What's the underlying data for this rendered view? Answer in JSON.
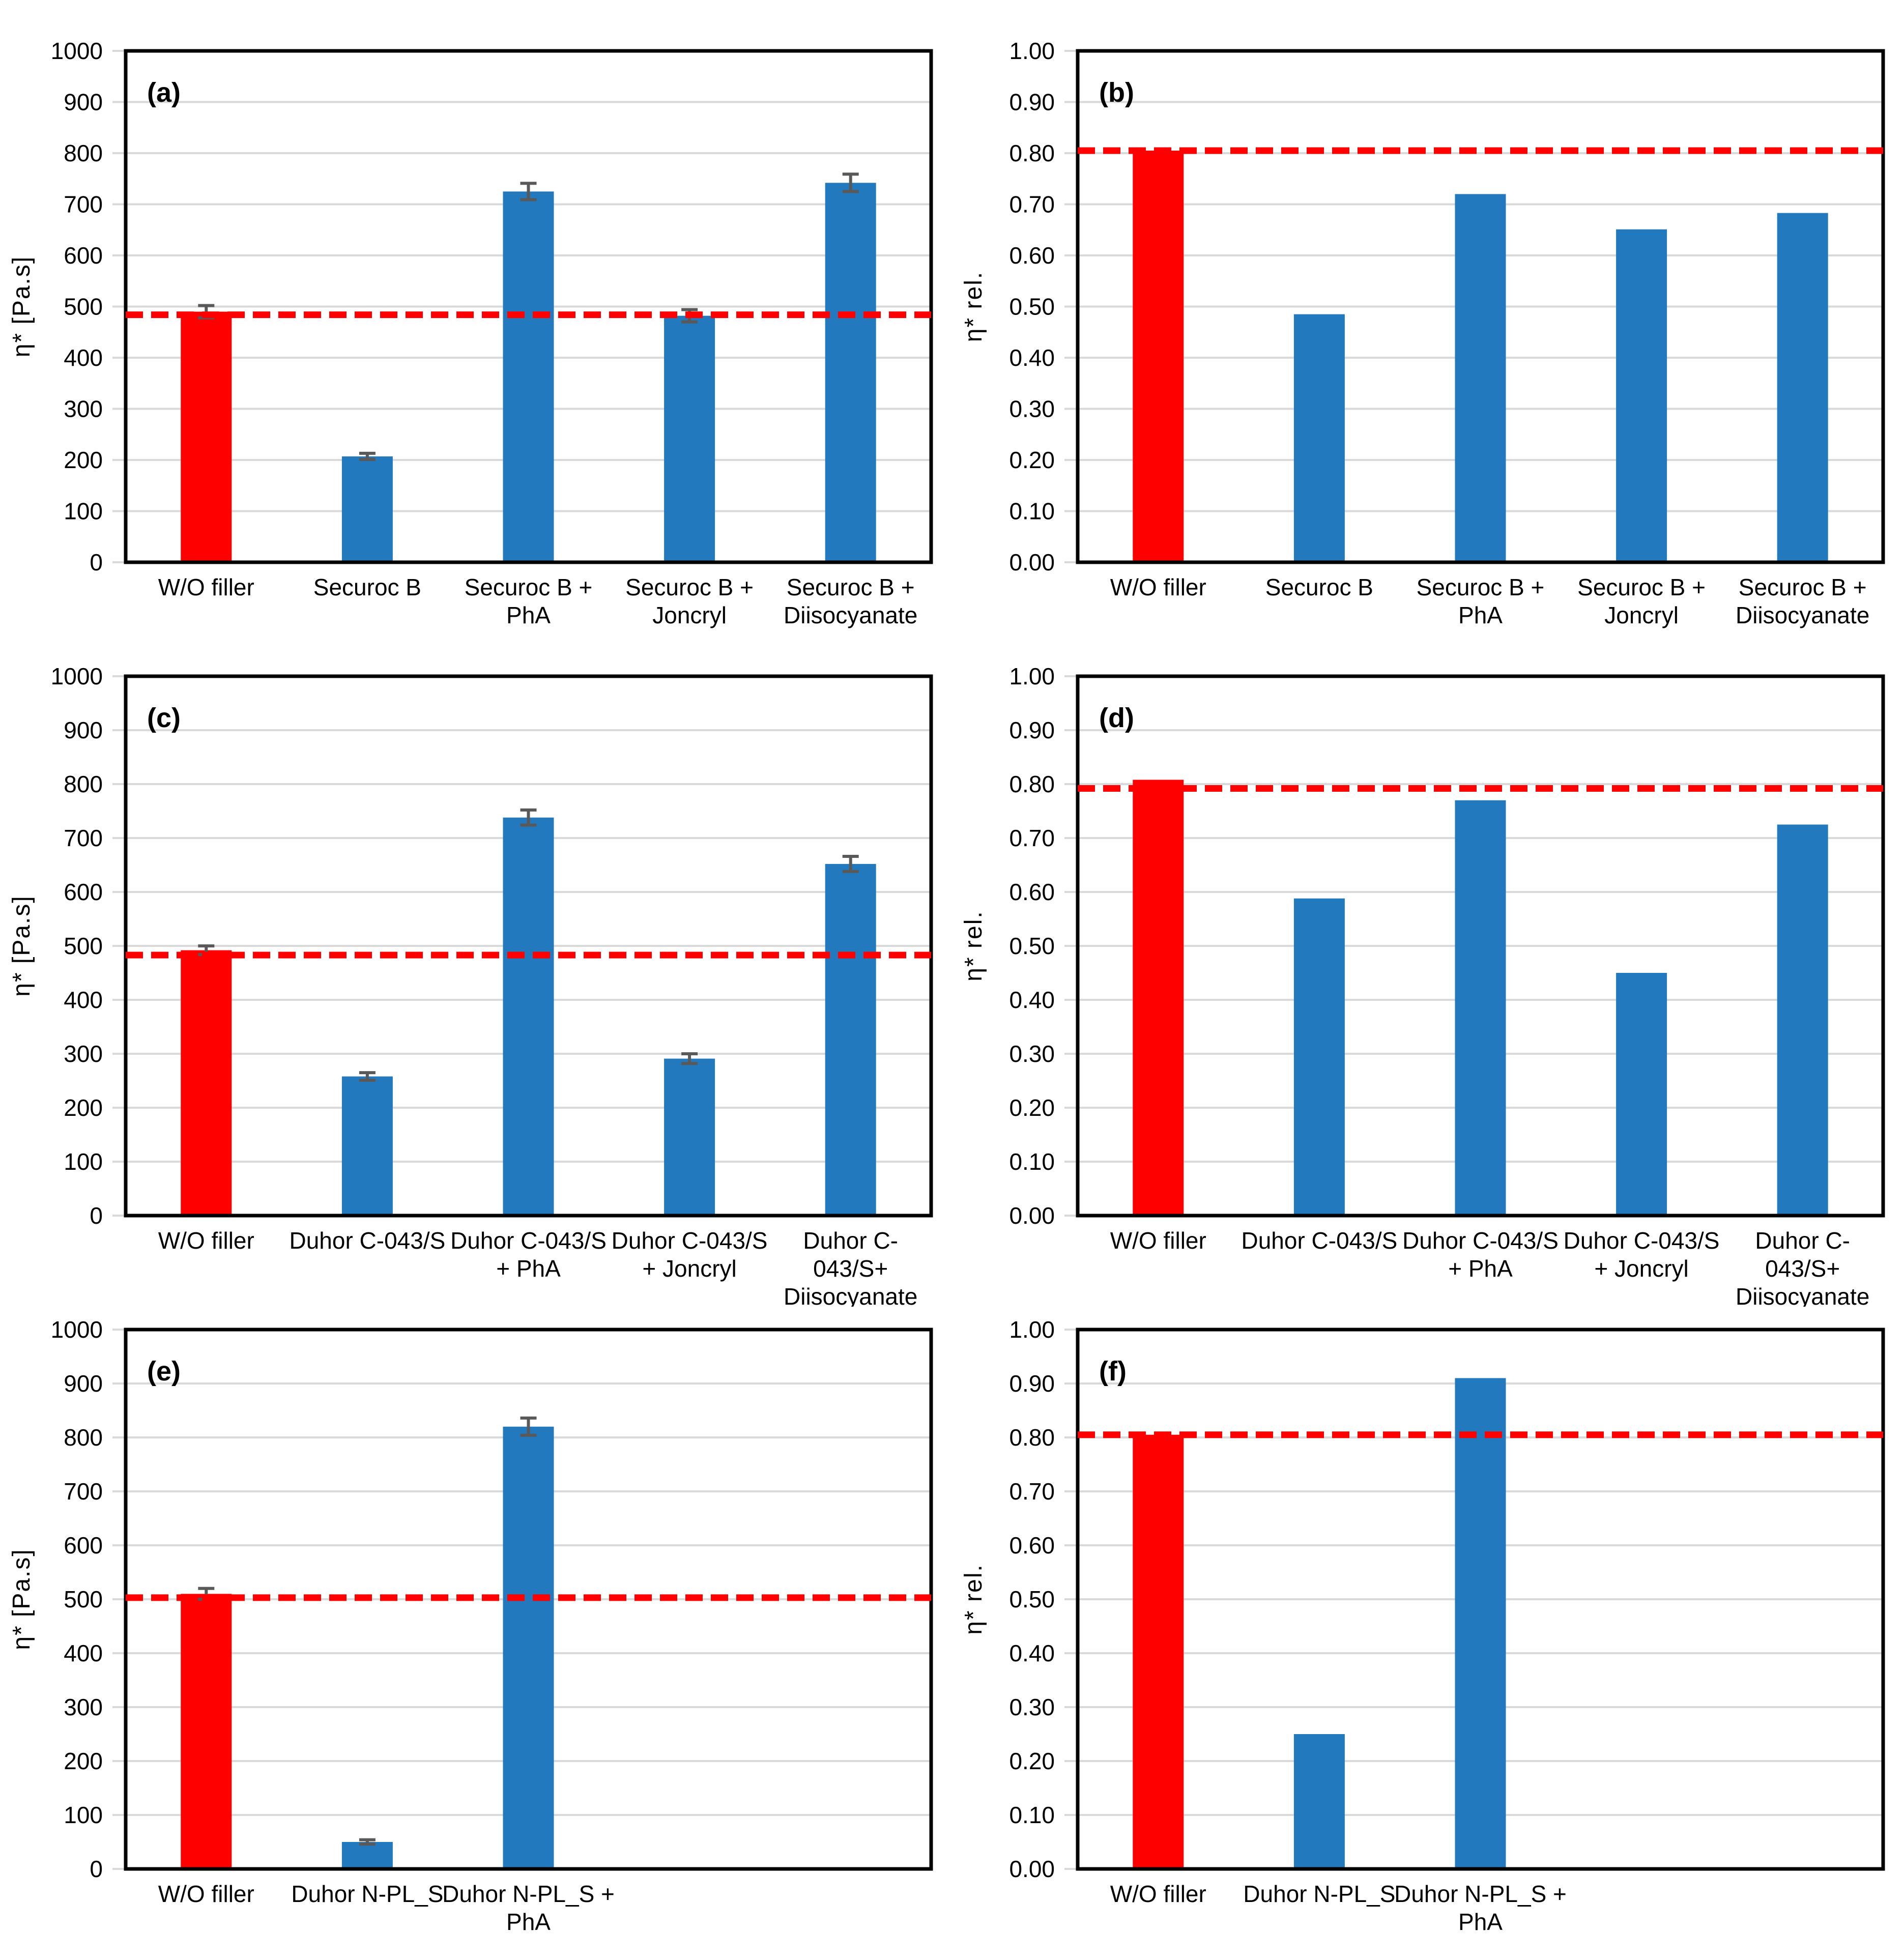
{
  "figure": {
    "background": "#ffffff",
    "panels_per_row": 2,
    "rows": 3
  },
  "colors": {
    "red": "#FF0000",
    "blue": "#2379BD",
    "grid": "#D9D9D9",
    "border": "#000000",
    "error": "#595959",
    "dash": "#FF0000"
  },
  "chart_data": [
    {
      "type": "bar",
      "panel_label": "(a)",
      "ylabel": "η* [Pa.s]",
      "ylim": [
        0,
        1000
      ],
      "ytick_step": 100,
      "ytick_format": "int",
      "grid": true,
      "slots": 5,
      "categories": [
        "W/O filler",
        "Securoc B",
        "Securoc B +\nPhA",
        "Securoc B +\nJoncryl",
        "Securoc B +\nDiisocyanate"
      ],
      "values": [
        490,
        207,
        725,
        482,
        742
      ],
      "errors": [
        12,
        6,
        16,
        12,
        17
      ],
      "bar_colors": [
        "red",
        "blue",
        "blue",
        "blue",
        "blue"
      ],
      "dashed_line": 484
    },
    {
      "type": "bar",
      "panel_label": "(b)",
      "ylabel": "η* rel.",
      "ylim": [
        0,
        1.0
      ],
      "ytick_step": 0.1,
      "ytick_format": "dec2",
      "grid": true,
      "slots": 5,
      "categories": [
        "W/O filler",
        "Securoc B",
        "Securoc B +\nPhA",
        "Securoc B +\nJoncryl",
        "Securoc B +\nDiisocyanate"
      ],
      "values": [
        0.805,
        0.485,
        0.72,
        0.651,
        0.683
      ],
      "errors": null,
      "bar_colors": [
        "red",
        "blue",
        "blue",
        "blue",
        "blue"
      ],
      "dashed_line": 0.805
    },
    {
      "type": "bar",
      "panel_label": "(c)",
      "ylabel": "η* [Pa.s]",
      "ylim": [
        0,
        1000
      ],
      "ytick_step": 100,
      "ytick_format": "int",
      "grid": true,
      "slots": 5,
      "categories": [
        "W/O filler",
        "Duhor C-043/S",
        "Duhor C-043/S\n+ PhA",
        "Duhor C-043/S\n+ Joncryl",
        "Duhor C-\n043/S+\nDiisocyanate"
      ],
      "values": [
        492,
        258,
        738,
        291,
        652
      ],
      "errors": [
        8,
        7,
        14,
        9,
        14
      ],
      "bar_colors": [
        "red",
        "blue",
        "blue",
        "blue",
        "blue"
      ],
      "dashed_line": 483
    },
    {
      "type": "bar",
      "panel_label": "(d)",
      "ylabel": "η* rel.",
      "ylim": [
        0,
        1.0
      ],
      "ytick_step": 0.1,
      "ytick_format": "dec2",
      "grid": true,
      "slots": 5,
      "categories": [
        "W/O filler",
        "Duhor C-043/S",
        "Duhor C-043/S\n+ PhA",
        "Duhor C-043/S\n+ Joncryl",
        "Duhor C-\n043/S+\nDiisocyanate"
      ],
      "values": [
        0.808,
        0.588,
        0.77,
        0.45,
        0.725
      ],
      "errors": null,
      "bar_colors": [
        "red",
        "blue",
        "blue",
        "blue",
        "blue"
      ],
      "dashed_line": 0.792
    },
    {
      "type": "bar",
      "panel_label": "(e)",
      "ylabel": "η* [Pa.s]",
      "ylim": [
        0,
        1000
      ],
      "ytick_step": 100,
      "ytick_format": "int",
      "grid": true,
      "slots": 5,
      "categories": [
        "W/O filler",
        "Duhor N-PL_S",
        "Duhor N-PL_S +\nPhA"
      ],
      "values": [
        510,
        50,
        820
      ],
      "errors": [
        10,
        4,
        16
      ],
      "bar_colors": [
        "red",
        "blue",
        "blue"
      ],
      "dashed_line": 503
    },
    {
      "type": "bar",
      "panel_label": "(f)",
      "ylabel": "η* rel.",
      "ylim": [
        0,
        1.0
      ],
      "ytick_step": 0.1,
      "ytick_format": "dec2",
      "grid": true,
      "slots": 5,
      "categories": [
        "W/O filler",
        "Duhor N-PL_S",
        "Duhor N-PL_S +\nPhA"
      ],
      "values": [
        0.805,
        0.25,
        0.91
      ],
      "errors": null,
      "bar_colors": [
        "red",
        "blue",
        "blue"
      ],
      "dashed_line": 0.805
    }
  ]
}
